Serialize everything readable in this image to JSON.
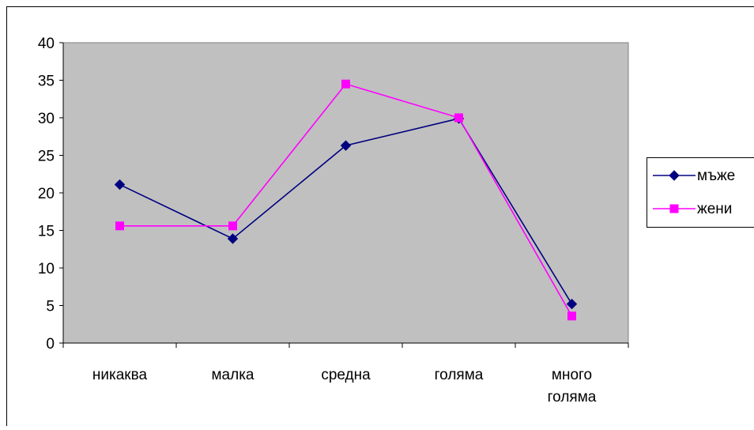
{
  "chart_data": {
    "type": "line",
    "categories": [
      "никаква",
      "малка",
      "средна",
      "голяма",
      "много голяма"
    ],
    "series": [
      {
        "name": "мъже",
        "values": [
          21.1,
          13.9,
          26.3,
          29.9,
          5.2
        ],
        "color": "#000080",
        "marker": "diamond"
      },
      {
        "name": "жени",
        "values": [
          15.6,
          15.6,
          34.5,
          30.0,
          3.6
        ],
        "color": "#FF00FF",
        "marker": "square"
      }
    ],
    "y_ticks": [
      "0",
      "5",
      "10",
      "15",
      "20",
      "25",
      "30",
      "35",
      "40"
    ],
    "ylim": [
      0,
      40
    ],
    "grid": false,
    "plot_background": "#C0C0C0",
    "legend_position": "right"
  }
}
